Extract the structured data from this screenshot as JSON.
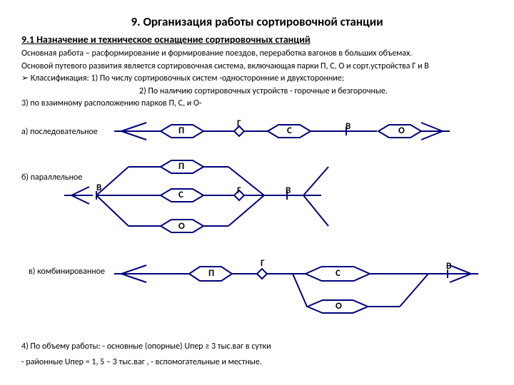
{
  "title": "9. Организация работы сортировочной станции",
  "subtitle": "9.1  Назначение и техническое оснащение сортировочных станций",
  "p1": "Основная работа – расформирование и формирование поездов, переработка вагонов в больших объемах.",
  "p2": "Основой  путевого развития  является сортировочная система, включающая  парки П, С, О и сорт.устройства Г и В",
  "p3": "Классификация:  1)  По числу сортировочных систем  -односторонние и двухсторонние;",
  "p4": "2) По наличию сортировочных устройств  - горочные и безгорочные.",
  "p5": "3) по взаимному расположению  парков П, С, и О-",
  "labA": "а) последовательное",
  "labB": "б)  параллельное",
  "labC": "в) комбинированное",
  "P": "П",
  "S": "С",
  "O": "О",
  "G": "Г",
  "V": "В",
  "stroke": "#00007a",
  "strokeW": 2,
  "footer1": "4) По объему работы: - основные  (опорные)     Uпер  ≥  3 тыс.ваг в сутки",
  "footer2": " -   районные     Uпер  = 1, 5 – 3  тыс.ваг ,     -  вспомогательные и местные."
}
